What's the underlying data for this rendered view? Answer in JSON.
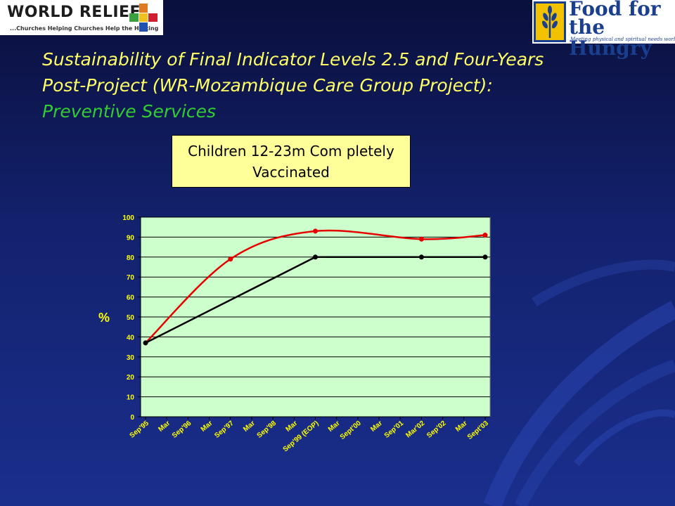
{
  "header": {
    "left_logo": {
      "name": "WORLD RELIEF",
      "tagline": "...Churches Helping Churches Help the Hurting"
    },
    "right_logo": {
      "line1": "Food for",
      "line2": "the Hungry",
      "tagline": "Meeting physical and spiritual needs worldwide"
    }
  },
  "slide_title": {
    "main": "Sustainability of Final Indicator Levels 2.5 and Four-Years Post-Project (WR-Mozambique Care Group Project):",
    "sub": "Preventive Services"
  },
  "colors": {
    "plot_background": "#ccffcc",
    "title_box": "#ffff99",
    "series_red": "#e60000",
    "series_black": "#000000",
    "label_yellow": "#ffff00"
  },
  "chart_data": {
    "type": "line",
    "title": "Children 12-23m Com pletely Vaccinated",
    "ylabel": "%",
    "ylim": [
      0,
      100
    ],
    "yticks": [
      0,
      10,
      20,
      30,
      40,
      50,
      60,
      70,
      80,
      90,
      100
    ],
    "grid": true,
    "categories": [
      "Sep'95",
      "Mar",
      "Sep'96",
      "Mar",
      "Sep'97",
      "Mar",
      "Sep'98",
      "Mar",
      "Sep'99 (EOP)",
      "Mar",
      "Sept'00",
      "Mar",
      "Sep'01",
      "Mar'02",
      "Sep'02",
      "Mar",
      "Sept'03"
    ],
    "series": [
      {
        "color": "#e60000",
        "smooth": true,
        "points": [
          [
            0,
            37
          ],
          [
            4,
            79
          ],
          [
            8,
            93
          ],
          [
            13,
            89
          ],
          [
            16,
            91
          ]
        ]
      },
      {
        "color": "#000000",
        "smooth": false,
        "points": [
          [
            0,
            37
          ],
          [
            8,
            80
          ],
          [
            13,
            80
          ],
          [
            16,
            80
          ]
        ]
      }
    ]
  }
}
